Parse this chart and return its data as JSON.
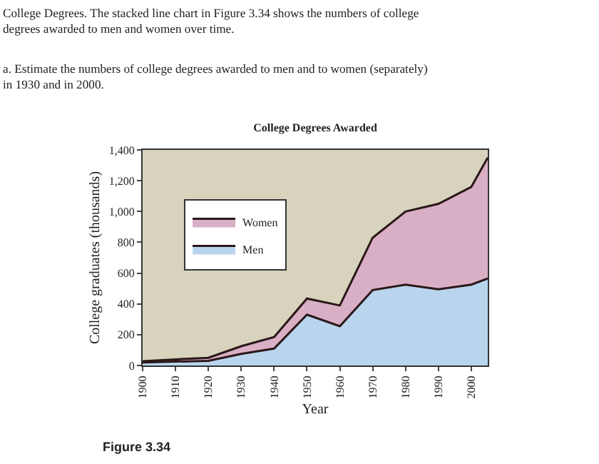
{
  "chart_data": {
    "type": "area",
    "stacked": true,
    "title": "College Degrees Awarded",
    "xlabel": "Year",
    "ylabel": "College graduates (thousands)",
    "x": [
      1900,
      1910,
      1920,
      1930,
      1940,
      1950,
      1960,
      1970,
      1980,
      1990,
      2000,
      2005
    ],
    "series": [
      {
        "name": "Men",
        "color": "#b9d5ee",
        "values": [
          20,
          25,
          30,
          75,
          110,
          330,
          255,
          490,
          525,
          495,
          525,
          565
        ]
      },
      {
        "name": "Women",
        "color": "#d9afc6",
        "values": [
          8,
          15,
          20,
          50,
          75,
          105,
          135,
          340,
          475,
          555,
          635,
          785
        ]
      }
    ],
    "xlim": [
      1900,
      2005
    ],
    "xticks": [
      1900,
      1910,
      1920,
      1930,
      1940,
      1950,
      1960,
      1970,
      1980,
      1990,
      2000
    ],
    "ylim": [
      0,
      1400
    ],
    "yticks": [
      {
        "value": 0,
        "label": "0"
      },
      {
        "value": 200,
        "label": "200"
      },
      {
        "value": 400,
        "label": "400"
      },
      {
        "value": 600,
        "label": "600"
      },
      {
        "value": 800,
        "label": "800"
      },
      {
        "value": 1000,
        "label": "1,000"
      },
      {
        "value": 1200,
        "label": "1,200"
      },
      {
        "value": 1400,
        "label": "1,400"
      }
    ],
    "legend": "top left",
    "grid": false,
    "annotations": [
      "College Degrees. The stacked line chart in Figure 3.34 shows the numbers of college degrees awarded to men and women over time.",
      "a. Estimate the numbers of college degrees awarded to men and to women (separately) in 1930 and in 2000.",
      "Figure 3.34"
    ]
  }
}
